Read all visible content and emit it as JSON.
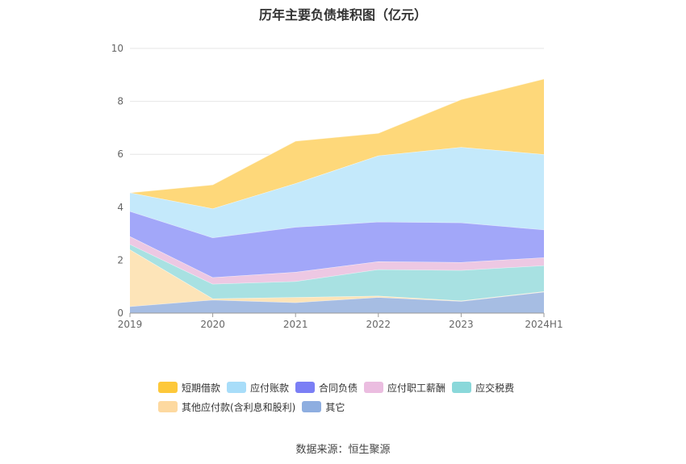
{
  "title": "历年主要负债堆积图（亿元）",
  "source": "数据来源：恒生聚源",
  "chart_data": {
    "type": "area",
    "stacked": true,
    "categories": [
      "2019",
      "2020",
      "2021",
      "2022",
      "2023",
      "2024H1"
    ],
    "ylim": [
      0,
      10
    ],
    "yticks": [
      0,
      2,
      4,
      6,
      8,
      10
    ],
    "grid": true,
    "legend_position": "bottom",
    "series": [
      {
        "name": "其它",
        "color": "#a6bde3",
        "legend_color": "#8eaee0",
        "values": [
          0.25,
          0.5,
          0.4,
          0.6,
          0.45,
          0.8
        ]
      },
      {
        "name": "其他应付款(含利息和股利)",
        "color": "#fde4b8",
        "legend_color": "#fdd9a0",
        "values": [
          2.15,
          0.05,
          0.2,
          0.05,
          0.02,
          0.02
        ]
      },
      {
        "name": "应交税费",
        "color": "#a8e1e2",
        "legend_color": "#8ad8da",
        "values": [
          0.2,
          0.55,
          0.6,
          1.0,
          1.15,
          0.98
        ]
      },
      {
        "name": "应付职工薪酬",
        "color": "#edc8e3",
        "legend_color": "#ebbde0",
        "values": [
          0.3,
          0.25,
          0.35,
          0.3,
          0.3,
          0.3
        ]
      },
      {
        "name": "合同负债",
        "color": "#a2a7f9",
        "legend_color": "#7b7ff5",
        "values": [
          0.95,
          1.5,
          1.7,
          1.5,
          1.5,
          1.05
        ]
      },
      {
        "name": "应付账款",
        "color": "#c4e9fb",
        "legend_color": "#a8ddf9",
        "values": [
          0.7,
          1.1,
          1.65,
          2.5,
          2.85,
          2.85
        ]
      },
      {
        "name": "短期借款",
        "color": "#fed87a",
        "legend_color": "#fdc83a",
        "values": [
          0.0,
          0.9,
          1.6,
          0.85,
          1.8,
          2.85
        ]
      }
    ],
    "legend_order": [
      "短期借款",
      "应付账款",
      "合同负债",
      "应付职工薪酬",
      "应交税费",
      "其他应付款(含利息和股利)",
      "其它"
    ]
  }
}
